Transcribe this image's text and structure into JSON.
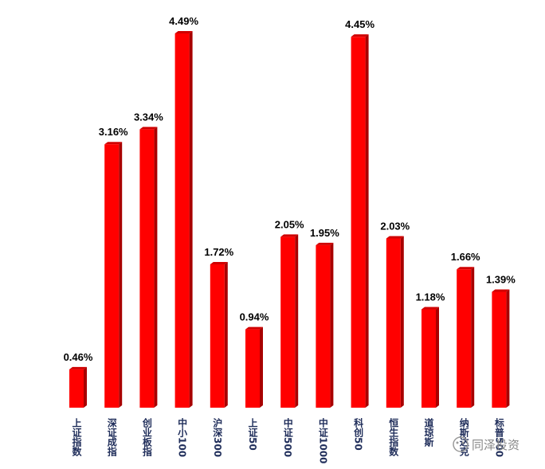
{
  "chart_data": {
    "type": "bar",
    "categories": [
      "上证指数",
      "深证成指",
      "创业板指",
      "中小100",
      "沪深300",
      "上证50",
      "中证500",
      "中证1000",
      "科创50",
      "恒生指数",
      "道琼斯",
      "纳斯达克",
      "标普500"
    ],
    "values": [
      0.46,
      3.16,
      3.34,
      4.49,
      1.72,
      0.94,
      2.05,
      1.95,
      4.45,
      2.03,
      1.18,
      1.66,
      1.39
    ],
    "value_labels": [
      "0.46%",
      "3.16%",
      "3.34%",
      "4.49%",
      "1.72%",
      "0.94%",
      "2.05%",
      "1.95%",
      "4.45%",
      "2.03%",
      "1.18%",
      "1.66%",
      "1.39%"
    ],
    "color": "#ff0000",
    "watermark": "同泽投资"
  }
}
